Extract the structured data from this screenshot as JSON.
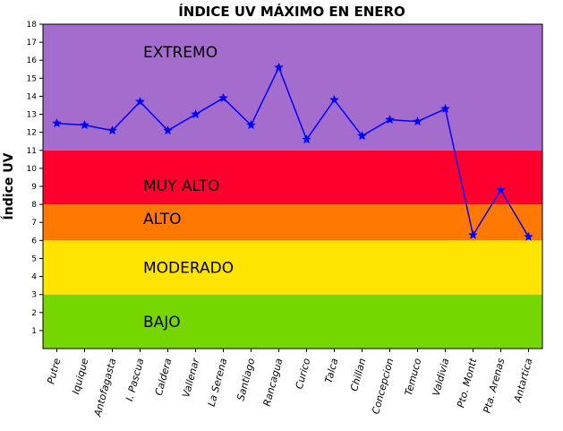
{
  "chart_data": {
    "type": "line",
    "title": "ÍNDICE UV MÁXIMO EN ENERO",
    "ylabel": "Índice UV",
    "xlabel": "",
    "ylim": [
      0,
      18
    ],
    "yticks": [
      1,
      2,
      3,
      4,
      5,
      6,
      7,
      8,
      9,
      10,
      11,
      12,
      13,
      14,
      15,
      16,
      17,
      18
    ],
    "categories": [
      "Putre",
      "Iquique",
      "Antofagasta",
      "I. Pascua",
      "Caldera",
      "Vallenar",
      "La Serena",
      "Santiago",
      "Rancagua",
      "Curico",
      "Talca",
      "Chillan",
      "Concepcion",
      "Temuco",
      "Valdivia",
      "Pto. Montt",
      "Pta. Arenas",
      "Antartica"
    ],
    "values": [
      12.5,
      12.4,
      12.1,
      13.7,
      12.1,
      13.0,
      13.9,
      12.4,
      15.6,
      11.6,
      13.8,
      11.8,
      12.7,
      12.6,
      13.3,
      6.3,
      8.8,
      6.2
    ],
    "line_color": "#0000ff",
    "marker": "star",
    "bands": [
      {
        "label": "BAJO",
        "from": 0,
        "to": 3,
        "color": "#76d600"
      },
      {
        "label": "MODERADO",
        "from": 3,
        "to": 6,
        "color": "#ffe400"
      },
      {
        "label": "ALTO",
        "from": 6,
        "to": 8,
        "color": "#ff7800"
      },
      {
        "label": "MUY ALTO",
        "from": 8,
        "to": 11,
        "color": "#ff002e"
      },
      {
        "label": "EXTREMO",
        "from": 11,
        "to": 18,
        "color": "#a36ccd"
      }
    ],
    "grid": false
  }
}
